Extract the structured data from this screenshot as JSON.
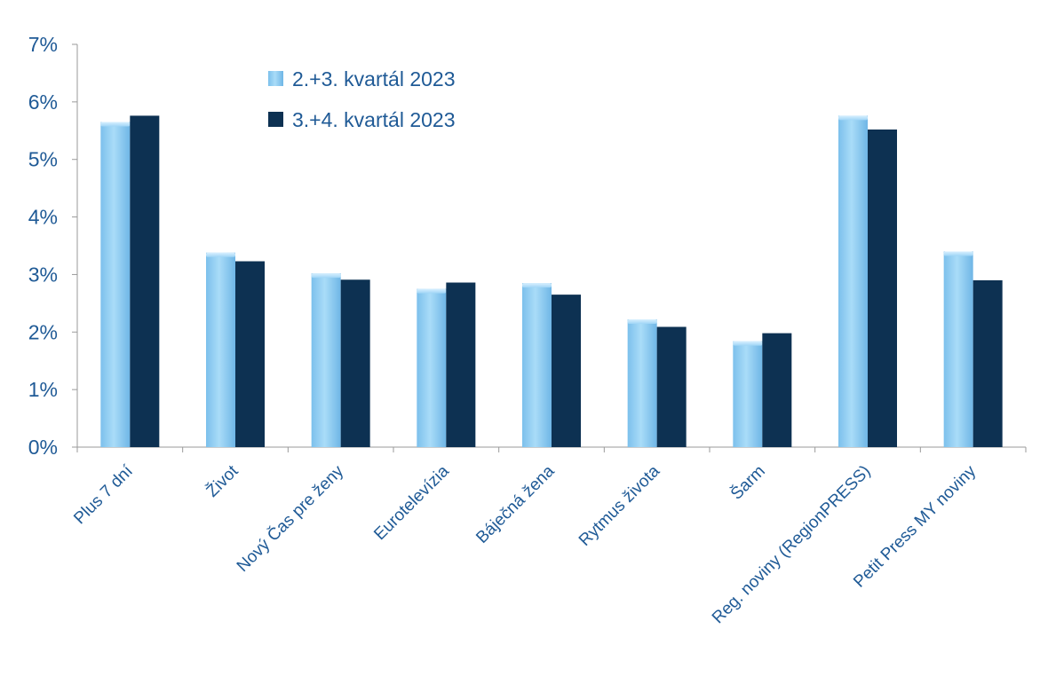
{
  "chart_data": {
    "type": "bar",
    "title": "",
    "xlabel": "",
    "ylabel": "",
    "ylim": [
      0,
      7
    ],
    "y_ticks": [
      0,
      1,
      2,
      3,
      4,
      5,
      6,
      7
    ],
    "y_tick_labels": [
      "0%",
      "1%",
      "2%",
      "3%",
      "4%",
      "5%",
      "6%",
      "7%"
    ],
    "y_unit": "%",
    "grid": false,
    "legend_position": "top-center",
    "categories": [
      "Plus 7 dní",
      "Život",
      "Nový Čas pre ženy",
      "Eurotelevízia",
      "Báječná žena",
      "Rytmus života",
      "Šarm",
      "Reg. noviny (RegionPRESS)",
      "Petit Press MY noviny"
    ],
    "series": [
      {
        "name": "2.+3. kvartál 2023",
        "color": "#8fcdf3",
        "values": [
          5.65,
          3.38,
          3.02,
          2.75,
          2.85,
          2.22,
          1.84,
          5.76,
          3.4
        ]
      },
      {
        "name": "3.+4. kvartál 2023",
        "color": "#0d3152",
        "values": [
          5.76,
          3.23,
          2.91,
          2.86,
          2.65,
          2.09,
          1.98,
          5.52,
          2.9
        ]
      }
    ]
  }
}
